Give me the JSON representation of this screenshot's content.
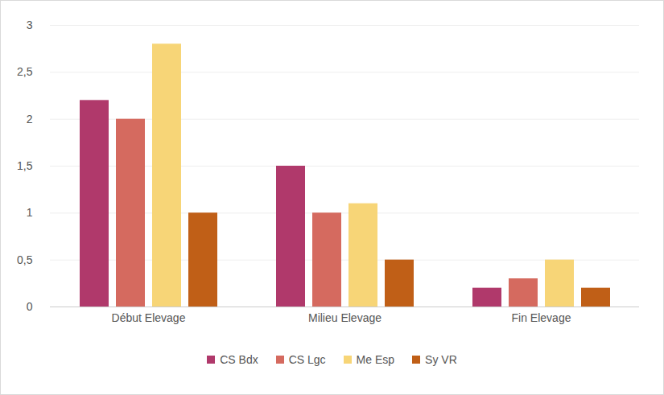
{
  "chart_data": {
    "type": "bar",
    "categories": [
      "Début Elevage",
      "Milieu Elevage",
      "Fin Elevage"
    ],
    "series": [
      {
        "name": "CS Bdx",
        "color": "#b0396b",
        "values": [
          2.2,
          1.5,
          0.2
        ]
      },
      {
        "name": "CS Lgc",
        "color": "#d56a5f",
        "values": [
          2.0,
          1.0,
          0.3
        ]
      },
      {
        "name": "Me Esp",
        "color": "#f7d577",
        "values": [
          2.8,
          1.1,
          0.5
        ]
      },
      {
        "name": "Sy VR",
        "color": "#c05f17",
        "values": [
          1.0,
          0.5,
          0.2
        ]
      }
    ],
    "ylim": [
      0,
      3
    ],
    "yticks": [
      0,
      {
        "value": 0.5,
        "label": "0,5"
      },
      1,
      {
        "value": 1.5,
        "label": "1,5"
      },
      2,
      {
        "value": 2.5,
        "label": "2,5"
      },
      3
    ],
    "grid": true,
    "legend": "bottom"
  }
}
